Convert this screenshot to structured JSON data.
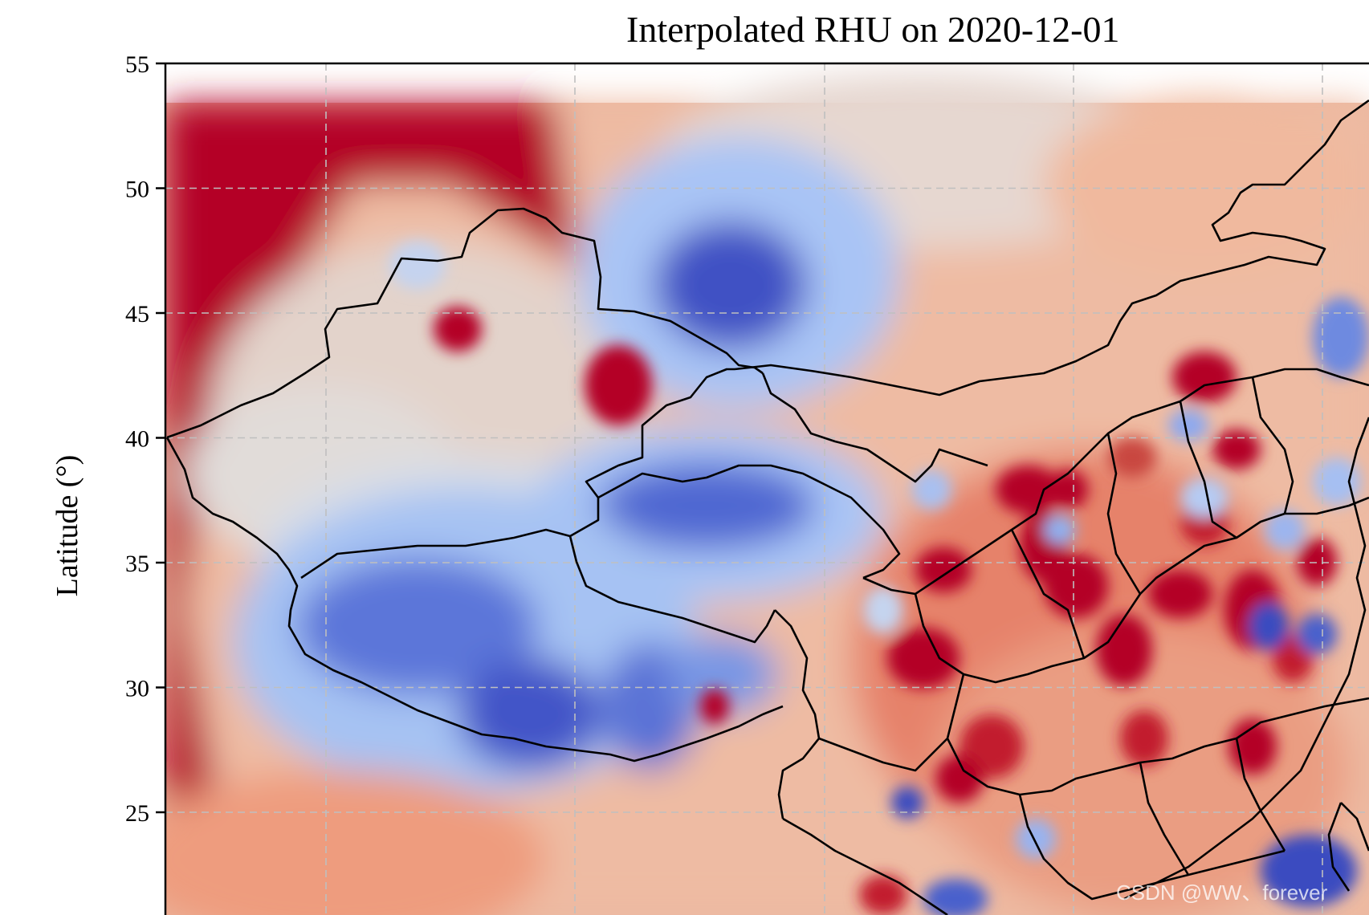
{
  "title": "Interpolated RHU on 2020-12-01",
  "y_axis": {
    "label": "Latitude (°)",
    "ticks": [
      55,
      50,
      45,
      40,
      35,
      30,
      25
    ],
    "range": [
      21,
      55
    ]
  },
  "x_axis": {
    "gridlines_lon": [
      80,
      90,
      100,
      110,
      120
    ],
    "range": [
      73.5,
      121.5
    ]
  },
  "grid": true,
  "colormap": "coolwarm",
  "colors": {
    "high": "#b40426",
    "mid": "#dddcdc",
    "low": "#3b4cc0",
    "border": "#000000",
    "grid": "#bfbfbf"
  },
  "watermark": "CSDN @WW、forever"
}
